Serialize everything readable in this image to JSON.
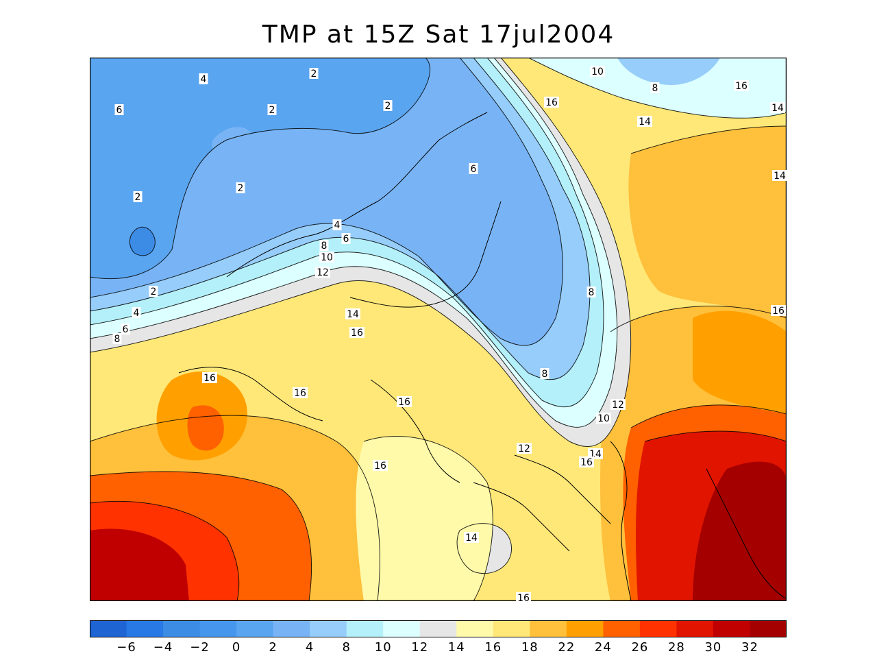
{
  "title": "TMP at 15Z Sat 17jul2004",
  "legend": {
    "colors": [
      "#1e64d2",
      "#2878e6",
      "#3c8ce6",
      "#4696ee",
      "#5aa5f0",
      "#78b4f5",
      "#96cdfa",
      "#b4f0fa",
      "#dcffff",
      "#e6e6e6",
      "#fffaaa",
      "#ffe878",
      "#ffc03c",
      "#ffa000",
      "#ff6000",
      "#ff3200",
      "#e11400",
      "#c00000",
      "#a50000"
    ],
    "tick_labels": [
      "-6",
      "-4",
      "-2",
      "0",
      "2",
      "4",
      "8",
      "10",
      "12",
      "14",
      "16",
      "18",
      "22",
      "24",
      "26",
      "28",
      "30",
      "32"
    ]
  },
  "contour_labels": [
    {
      "text": "2",
      "id": "c2a"
    },
    {
      "text": "2",
      "id": "c2b"
    },
    {
      "text": "2",
      "id": "c2c"
    },
    {
      "text": "2",
      "id": "c2d"
    },
    {
      "text": "2",
      "id": "c2e"
    },
    {
      "text": "2",
      "id": "c2f"
    },
    {
      "text": "4",
      "id": "c4a"
    },
    {
      "text": "4",
      "id": "c4b"
    },
    {
      "text": "4",
      "id": "c4c"
    },
    {
      "text": "6",
      "id": "c6a"
    },
    {
      "text": "6",
      "id": "c6b"
    },
    {
      "text": "6",
      "id": "c6c"
    },
    {
      "text": "6",
      "id": "c6d"
    },
    {
      "text": "8",
      "id": "c8a"
    },
    {
      "text": "8",
      "id": "c8b"
    },
    {
      "text": "8",
      "id": "c8c"
    },
    {
      "text": "8",
      "id": "c8d"
    },
    {
      "text": "8",
      "id": "c8e"
    },
    {
      "text": "10",
      "id": "c10a"
    },
    {
      "text": "10",
      "id": "c10b"
    },
    {
      "text": "10",
      "id": "c10c"
    },
    {
      "text": "12",
      "id": "c12a"
    },
    {
      "text": "12",
      "id": "c12b"
    },
    {
      "text": "12",
      "id": "c12c"
    },
    {
      "text": "14",
      "id": "c14a"
    },
    {
      "text": "14",
      "id": "c14b"
    },
    {
      "text": "14",
      "id": "c14c"
    },
    {
      "text": "14",
      "id": "c14d"
    },
    {
      "text": "14",
      "id": "c14e"
    },
    {
      "text": "14",
      "id": "c14f"
    },
    {
      "text": "16",
      "id": "c16a"
    },
    {
      "text": "16",
      "id": "c16b"
    },
    {
      "text": "16",
      "id": "c16c"
    },
    {
      "text": "16",
      "id": "c16d"
    },
    {
      "text": "16",
      "id": "c16e"
    },
    {
      "text": "16",
      "id": "c16f"
    },
    {
      "text": "16",
      "id": "c16g"
    },
    {
      "text": "16",
      "id": "c16h"
    },
    {
      "text": "16",
      "id": "c16i"
    },
    {
      "text": "16",
      "id": "c16j"
    }
  ]
}
